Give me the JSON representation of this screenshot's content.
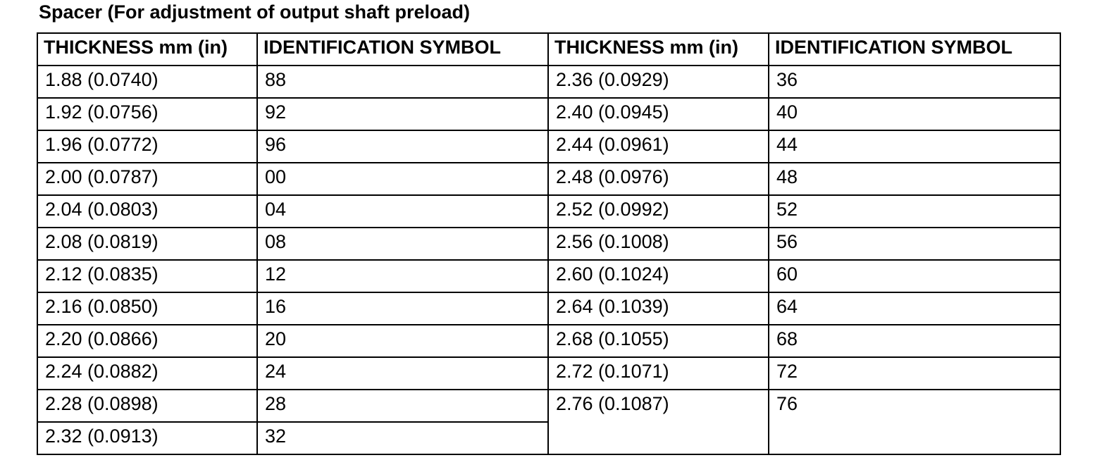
{
  "title": "Spacer (For adjustment of output shaft preload)",
  "table": {
    "header": [
      "THICKNESS mm (in)",
      "IDENTIFICATION SYMBOL",
      "THICKNESS mm (in)",
      "IDENTIFICATION SYMBOL"
    ],
    "rows": [
      [
        "1.88 (0.0740)",
        "88",
        "2.36 (0.0929)",
        "36"
      ],
      [
        "1.92 (0.0756)",
        "92",
        "2.40 (0.0945)",
        "40"
      ],
      [
        "1.96 (0.0772)",
        "96",
        "2.44 (0.0961)",
        "44"
      ],
      [
        "2.00 (0.0787)",
        "00",
        "2.48 (0.0976)",
        "48"
      ],
      [
        "2.04 (0.0803)",
        "04",
        "2.52 (0.0992)",
        "52"
      ],
      [
        "2.08 (0.0819)",
        "08",
        "2.56 (0.1008)",
        "56"
      ],
      [
        "2.12 (0.0835)",
        "12",
        "2.60 (0.1024)",
        "60"
      ],
      [
        "2.16 (0.0850)",
        "16",
        "2.64 (0.1039)",
        "64"
      ],
      [
        "2.20 (0.0866)",
        "20",
        "2.68 (0.1055)",
        "68"
      ],
      [
        "2.24 (0.0882)",
        "24",
        "2.72 (0.1071)",
        "72"
      ],
      [
        "2.28 (0.0898)",
        "28",
        "2.76 (0.1087)",
        "76"
      ],
      [
        "2.32 (0.0913)",
        "32"
      ]
    ]
  }
}
